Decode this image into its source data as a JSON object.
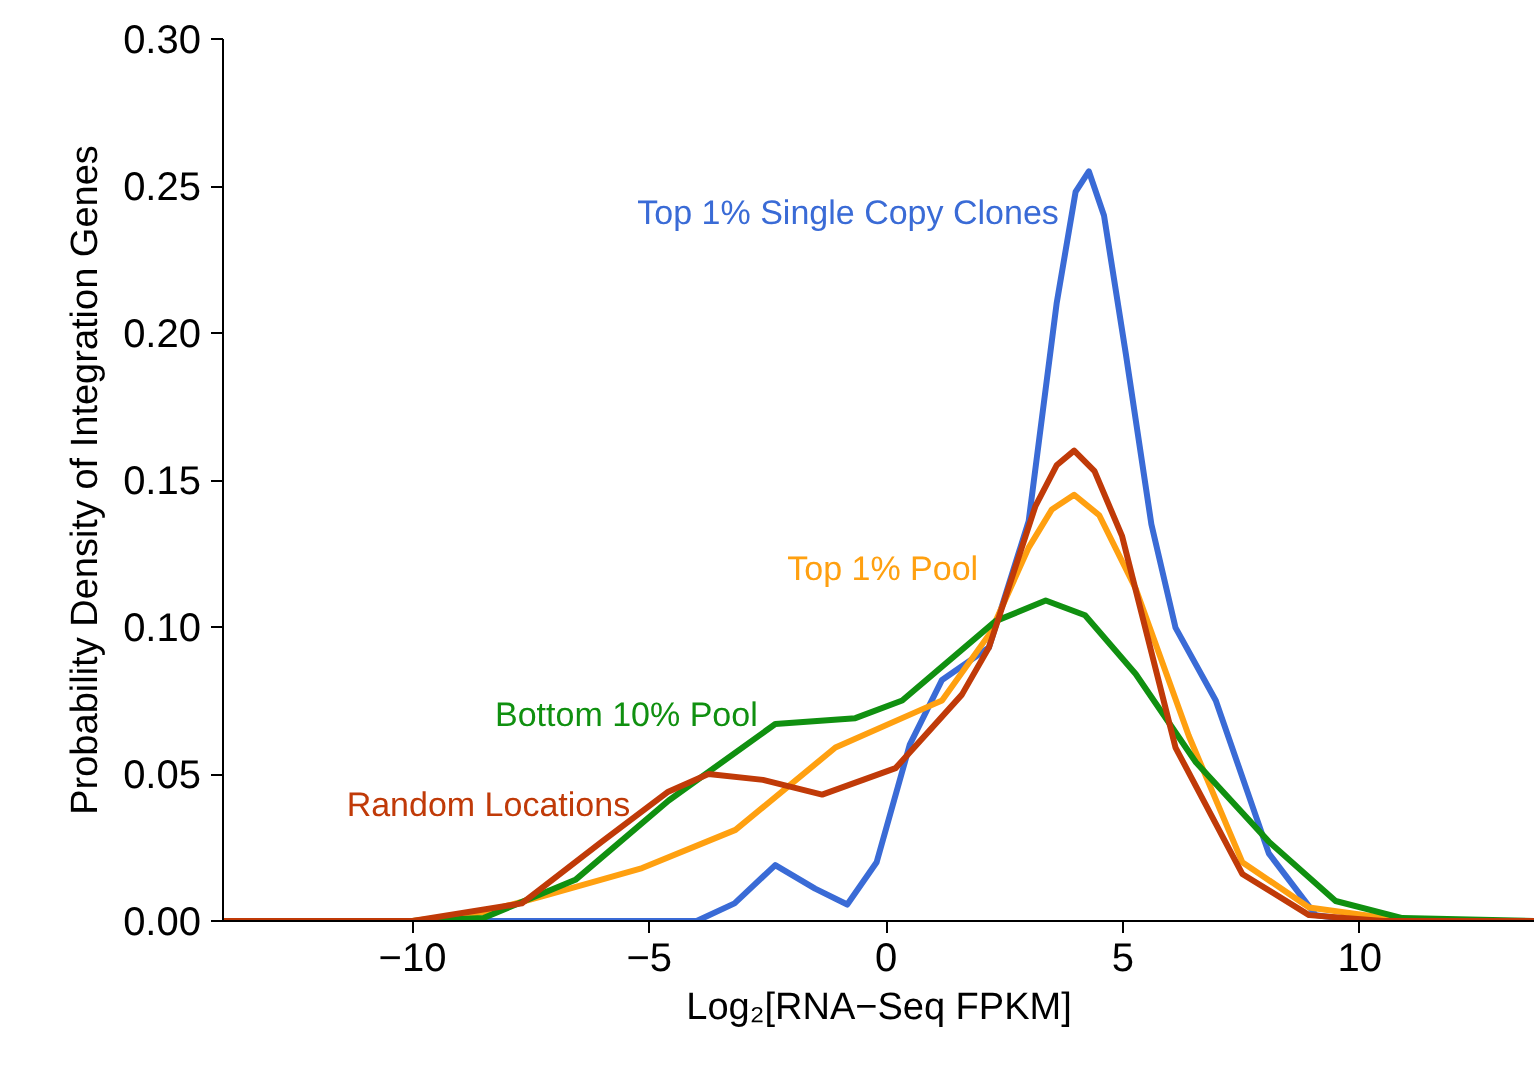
{
  "chart_data": {
    "type": "line",
    "xlabel": "Log₂[RNA−Seq FPKM]",
    "ylabel": "Probability Density of Integration Genes",
    "xlim": [
      -14,
      13.7
    ],
    "ylim": [
      0,
      0.3
    ],
    "xticks": [
      {
        "value": -10,
        "label": "−10"
      },
      {
        "value": -5,
        "label": "−5"
      },
      0,
      5,
      10
    ],
    "yticks": [
      {
        "value": 0,
        "label": "0.00"
      },
      {
        "value": 0.05,
        "label": "0.05"
      },
      {
        "value": 0.1,
        "label": "0.10"
      },
      {
        "value": 0.15,
        "label": "0.15"
      },
      {
        "value": 0.2,
        "label": "0.20"
      },
      {
        "value": 0.25,
        "label": "0.25"
      },
      {
        "value": 0.3,
        "label": "0.30"
      }
    ],
    "grid": false,
    "line_style": "solid",
    "series": [
      {
        "name": "Top 1% Single Copy Clones",
        "color": "#3a6bd6",
        "x": [
          -14,
          -4,
          -3.2,
          -2.34,
          -1.5,
          -0.82,
          -0.2,
          0.5,
          1.18,
          2.17,
          3.01,
          3.6,
          4.0,
          4.28,
          4.6,
          5.06,
          5.6,
          6.11,
          6.96,
          8.08,
          9.07,
          10,
          13.7
        ],
        "values": [
          0,
          0,
          0.006,
          0.019,
          0.011,
          0.0056,
          0.02,
          0.06,
          0.082,
          0.093,
          0.136,
          0.21,
          0.248,
          0.255,
          0.24,
          0.193,
          0.135,
          0.0998,
          0.075,
          0.023,
          0.002,
          0,
          0
        ]
      },
      {
        "name": "Top 1% Pool",
        "color": "#ffa010",
        "x": [
          -14,
          -10,
          -8.5,
          -7.13,
          -5.15,
          -3.18,
          -1.07,
          0.9,
          1.18,
          2.2,
          3.01,
          3.5,
          3.97,
          4.5,
          5.27,
          6.39,
          7.52,
          8.93,
          11,
          13.7
        ],
        "values": [
          0,
          0,
          0.003,
          0.009,
          0.018,
          0.031,
          0.059,
          0.073,
          0.075,
          0.098,
          0.127,
          0.14,
          0.145,
          0.138,
          0.113,
          0.063,
          0.02,
          0.0046,
          0,
          0
        ]
      },
      {
        "name": "Bottom 10% Pool",
        "color": "#109010",
        "x": [
          -14,
          -10,
          -8.5,
          -6.56,
          -4.59,
          -2.34,
          -0.65,
          0.34,
          2.31,
          3.37,
          4.2,
          5.27,
          6.54,
          8.08,
          9.49,
          10.9,
          13.7
        ],
        "values": [
          0,
          0,
          0.001,
          0.014,
          0.041,
          0.067,
          0.069,
          0.075,
          0.102,
          0.109,
          0.104,
          0.084,
          0.054,
          0.027,
          0.0068,
          0.001,
          0
        ]
      },
      {
        "name": "Random Locations",
        "color": "#c03a08",
        "x": [
          -14,
          -10,
          -7.69,
          -6.0,
          -4.6,
          -3.75,
          -2.6,
          -1.35,
          0.2,
          1.6,
          2.17,
          3.15,
          3.6,
          3.97,
          4.4,
          4.98,
          6.11,
          7.52,
          8.93,
          10.5,
          13.7
        ],
        "values": [
          0,
          0,
          0.006,
          0.027,
          0.044,
          0.05,
          0.048,
          0.043,
          0.052,
          0.077,
          0.093,
          0.141,
          0.155,
          0.16,
          0.153,
          0.131,
          0.059,
          0.016,
          0.002,
          0,
          0
        ]
      }
    ]
  }
}
